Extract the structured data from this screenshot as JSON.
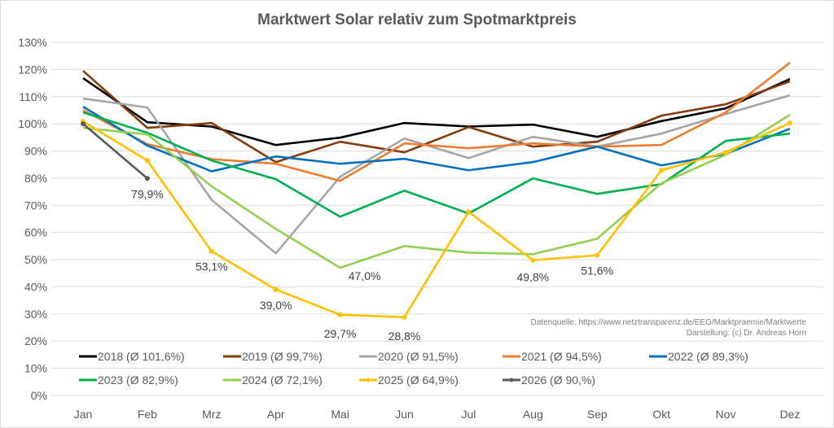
{
  "chart_data": {
    "type": "line",
    "title": "Marktwert Solar relativ zum Spotmarktpreis",
    "xlabel": "",
    "ylabel": "",
    "categories": [
      "Jan",
      "Feb",
      "Mrz",
      "Apr",
      "Mai",
      "Jun",
      "Jul",
      "Aug",
      "Sep",
      "Okt",
      "Nov",
      "Dez"
    ],
    "ylim": [
      0,
      130
    ],
    "yticks": [
      0,
      10,
      20,
      30,
      40,
      50,
      60,
      70,
      80,
      90,
      100,
      110,
      120,
      130
    ],
    "ytick_labels": [
      "0%",
      "10%",
      "20%",
      "30%",
      "40%",
      "50%",
      "60%",
      "70%",
      "80%",
      "90%",
      "100%",
      "110%",
      "120%",
      "130%"
    ],
    "grid": true,
    "legend_position": "bottom",
    "series": [
      {
        "name": "2018",
        "legend": "2018 (Ø 101,6%)",
        "color": "#000000",
        "markers": false,
        "values": [
          116.8,
          100.6,
          99.0,
          92.2,
          94.9,
          100.3,
          99.0,
          99.7,
          95.2,
          101.0,
          105.7,
          116.5
        ]
      },
      {
        "name": "2019",
        "legend": "2019 (Ø 99,7%)",
        "color": "#843c0c",
        "markers": false,
        "values": [
          119.5,
          98.5,
          100.3,
          85.9,
          93.4,
          89.5,
          98.8,
          91.6,
          93.4,
          103.0,
          107.2,
          115.6
        ]
      },
      {
        "name": "2020",
        "legend": "2020 (Ø 91,5%)",
        "color": "#a5a5a5",
        "markers": false,
        "values": [
          109.3,
          106.0,
          72.0,
          52.3,
          80.5,
          94.6,
          87.4,
          95.2,
          91.6,
          96.4,
          103.6,
          110.5
        ]
      },
      {
        "name": "2021",
        "legend": "2021 (Ø 94,5%)",
        "color": "#ed7d31",
        "markers": false,
        "values": [
          105.0,
          92.5,
          87.0,
          85.3,
          79.0,
          92.8,
          91.0,
          92.8,
          91.6,
          92.2,
          104.2,
          122.5
        ]
      },
      {
        "name": "2022",
        "legend": "2022 (Ø 89,3%)",
        "color": "#0070c0",
        "markers": false,
        "values": [
          106.3,
          92.0,
          82.5,
          88.0,
          85.3,
          87.1,
          82.9,
          85.9,
          91.6,
          84.7,
          88.9,
          98.2
        ]
      },
      {
        "name": "2023",
        "legend": "2023 (Ø 82,9%)",
        "color": "#00b050",
        "markers": false,
        "values": [
          104.2,
          96.7,
          86.5,
          79.6,
          65.8,
          75.4,
          67.0,
          79.9,
          74.2,
          77.8,
          93.7,
          96.4
        ]
      },
      {
        "name": "2024",
        "legend": "2024 (Ø 72,1%)",
        "color": "#92d050",
        "markers": false,
        "values": [
          98.5,
          96.1,
          77.0,
          61.3,
          47.0,
          55.0,
          52.6,
          52.0,
          57.7,
          78.1,
          88.6,
          103.3
        ]
      },
      {
        "name": "2025",
        "legend": "2025 (Ø 64,9%)",
        "color": "#ffc000",
        "markers": true,
        "values": [
          100.9,
          86.5,
          53.1,
          39.0,
          29.7,
          28.8,
          67.6,
          49.8,
          51.6,
          82.9,
          89.5,
          100.3
        ]
      },
      {
        "name": "2026",
        "legend": "2026 (Ø 90,%)",
        "color": "#595959",
        "markers": true,
        "values": [
          100.0,
          79.9,
          null,
          null,
          null,
          null,
          null,
          null,
          null,
          null,
          null,
          null
        ]
      }
    ],
    "annotations": [
      {
        "series": "2026",
        "category": "Feb",
        "text": "79,9%"
      },
      {
        "series": "2025",
        "category": "Mrz",
        "text": "53,1%"
      },
      {
        "series": "2025",
        "category": "Apr",
        "text": "39,0%"
      },
      {
        "series": "2024",
        "category": "Mai",
        "text": "47,0%"
      },
      {
        "series": "2025",
        "category": "Mai",
        "text": "29,7%"
      },
      {
        "series": "2025",
        "category": "Jun",
        "text": "28,8%"
      },
      {
        "series": "2025",
        "category": "Aug",
        "text": "49,8%"
      },
      {
        "series": "2025",
        "category": "Sep",
        "text": "51,6%"
      }
    ],
    "source_lines": [
      "Datenquelle: https://www.netztransparenz.de/EEG/Marktpraemie/Marktwerte",
      "Darstellung: (c) Dr. Andreas Horn"
    ]
  }
}
